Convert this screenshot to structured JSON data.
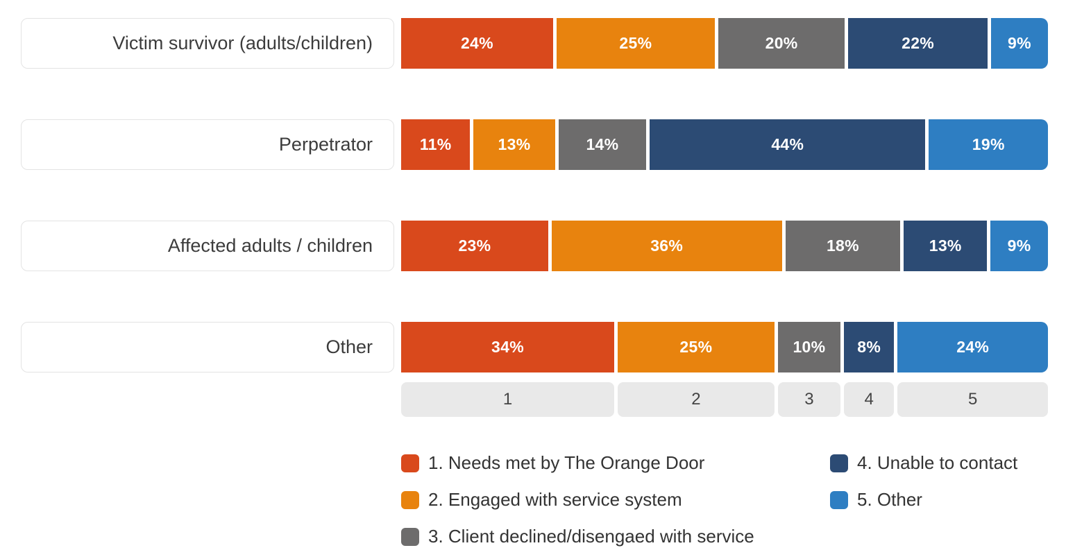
{
  "chart_data": {
    "type": "bar",
    "variant": "horizontal-stacked",
    "title": "",
    "value_suffix": "%",
    "categories": [
      "Victim survivor (adults/children)",
      "Perpetrator",
      "Affected adults / children",
      "Other"
    ],
    "series": [
      {
        "name": "1. Needs met by The Orange Door",
        "color": "#D9491C",
        "values": [
          24,
          11,
          23,
          34
        ]
      },
      {
        "name": "2. Engaged with service system",
        "color": "#E8830E",
        "values": [
          25,
          13,
          36,
          25
        ]
      },
      {
        "name": "3. Client declined/disengaed with service",
        "color": "#6D6C6C",
        "values": [
          20,
          14,
          18,
          10
        ]
      },
      {
        "name": "4. Unable to contact",
        "color": "#2C4B74",
        "values": [
          22,
          44,
          13,
          8
        ]
      },
      {
        "name": "5. Other",
        "color": "#2E7EC2",
        "values": [
          9,
          19,
          9,
          24
        ]
      }
    ],
    "x_axis_labels": [
      "1",
      "2",
      "3",
      "4",
      "5"
    ],
    "x_axis_sized_by_category_index": 3,
    "legend_position": "bottom",
    "legend_columns": [
      [
        0,
        1,
        2
      ],
      [
        3,
        4
      ]
    ],
    "grid": false,
    "colors": {
      "category_box_border": "#e3e3e3",
      "category_text": "#3c3c3c",
      "axis_box_bg": "#e9e9e9",
      "axis_text": "#444444",
      "segment_value_text": "#ffffff",
      "legend_text": "#333333",
      "background": "#ffffff"
    }
  }
}
